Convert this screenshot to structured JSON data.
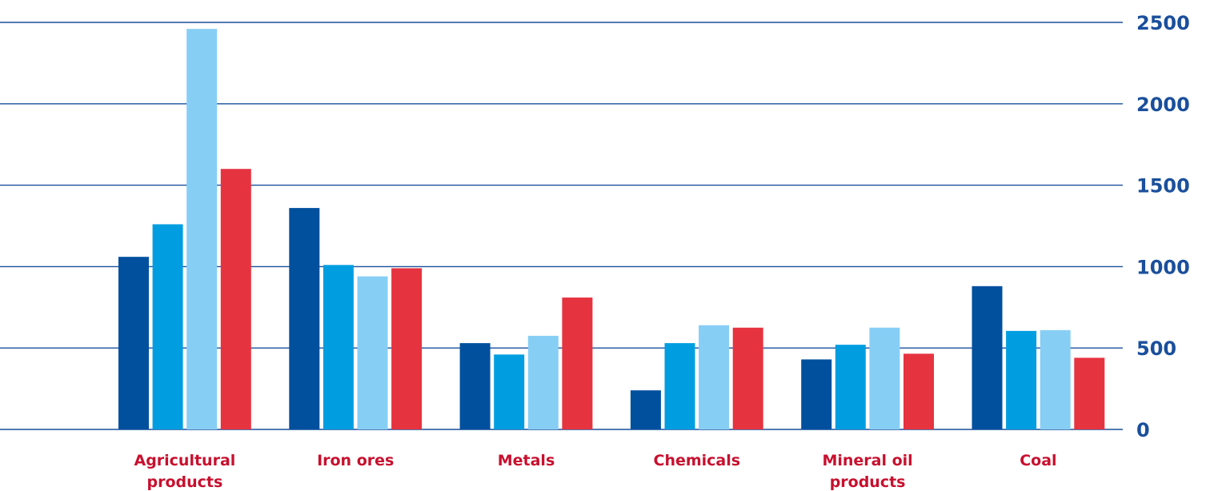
{
  "chart_data": {
    "type": "bar",
    "categories": [
      [
        "Agricultural",
        "products"
      ],
      [
        "Iron ores"
      ],
      [
        "Metals"
      ],
      [
        "Chemicals"
      ],
      [
        "Mineral oil",
        "products"
      ],
      [
        "Coal"
      ]
    ],
    "series": [
      {
        "color": "#00509e",
        "values": [
          1060,
          1360,
          530,
          240,
          430,
          880
        ]
      },
      {
        "color": "#009ee0",
        "values": [
          1260,
          1010,
          460,
          530,
          520,
          605
        ]
      },
      {
        "color": "#87cef5",
        "values": [
          2460,
          940,
          575,
          640,
          625,
          610
        ]
      },
      {
        "color": "#e63340",
        "values": [
          1600,
          990,
          810,
          625,
          465,
          440
        ]
      }
    ],
    "yticks": [
      0,
      500,
      1000,
      1500,
      2000,
      2500
    ],
    "ylim": [
      0,
      2500
    ],
    "grid": true,
    "gridline_color": "#1a4f9c",
    "label_color": "#1a4f9c",
    "category_label_color": "#c8102e"
  }
}
